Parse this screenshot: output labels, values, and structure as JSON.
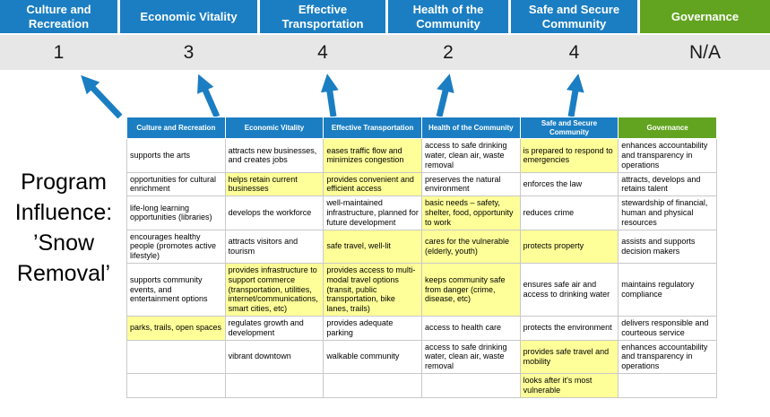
{
  "title": {
    "lines": [
      "Program",
      "Influence:",
      "’Snow",
      "Removal’"
    ]
  },
  "colors": {
    "blue": "#1b7ec2",
    "green": "#62a420",
    "score_bg": "#e7e7e7",
    "highlight": "#ffff99",
    "arrow": "#1b7ec2"
  },
  "scoreboard": [
    {
      "label": "Culture and Recreation",
      "score": "1",
      "theme": "blue"
    },
    {
      "label": "Economic Vitality",
      "score": "3",
      "theme": "blue"
    },
    {
      "label": "Effective Transportation",
      "score": "4",
      "theme": "blue"
    },
    {
      "label": "Health of the Community",
      "score": "2",
      "theme": "blue"
    },
    {
      "label": "Safe and Secure Community",
      "score": "4",
      "theme": "blue"
    },
    {
      "label": "Governance",
      "score": "N/A",
      "theme": "green"
    }
  ],
  "table": {
    "headers": [
      {
        "label": "Culture and Recreation",
        "theme": "blue"
      },
      {
        "label": "Economic Vitality",
        "theme": "blue"
      },
      {
        "label": "Effective Transportation",
        "theme": "blue"
      },
      {
        "label": "Health of the Community",
        "theme": "blue"
      },
      {
        "label": "Safe and Secure Community",
        "theme": "blue"
      },
      {
        "label": "Governance",
        "theme": "green"
      }
    ],
    "rows": [
      [
        {
          "text": "supports the arts",
          "highlight": false
        },
        {
          "text": "attracts new businesses, and creates jobs",
          "highlight": false
        },
        {
          "text": "eases traffic flow and minimizes congestion",
          "highlight": true
        },
        {
          "text": "access to safe drinking water, clean air, waste removal",
          "highlight": false
        },
        {
          "text": "is prepared to respond to emergencies",
          "highlight": true
        },
        {
          "text": "enhances accountability and transparency in operations",
          "highlight": false
        }
      ],
      [
        {
          "text": "opportunities for cultural enrichment",
          "highlight": false
        },
        {
          "text": "helps retain current businesses",
          "highlight": true
        },
        {
          "text": "provides convenient and efficient access",
          "highlight": true
        },
        {
          "text": "preserves the natural environment",
          "highlight": false
        },
        {
          "text": "enforces the law",
          "highlight": false
        },
        {
          "text": "attracts, develops and retains talent",
          "highlight": false
        }
      ],
      [
        {
          "text": "life-long learning opportunities (libraries)",
          "highlight": false
        },
        {
          "text": "develops the workforce",
          "highlight": false
        },
        {
          "text": "well-maintained infrastructure, planned for future development",
          "highlight": false
        },
        {
          "text": "basic needs – safety, shelter, food, opportunity to work",
          "highlight": true
        },
        {
          "text": "reduces crime",
          "highlight": false
        },
        {
          "text": "stewardship of financial, human and physical resources",
          "highlight": false
        }
      ],
      [
        {
          "text": "encourages healthy people (promotes active lifestyle)",
          "highlight": false
        },
        {
          "text": "attracts visitors and tourism",
          "highlight": false
        },
        {
          "text": "safe travel, well-lit",
          "highlight": true
        },
        {
          "text": "cares for the vulnerable (elderly, youth)",
          "highlight": true
        },
        {
          "text": "protects property",
          "highlight": true
        },
        {
          "text": "assists and supports decision makers",
          "highlight": false
        }
      ],
      [
        {
          "text": "supports community events, and entertainment options",
          "highlight": false
        },
        {
          "text": "provides infrastructure to support commerce (transportation, utilities, internet/communications, smart cities, etc)",
          "highlight": true
        },
        {
          "text": "provides access to multi-modal travel options (transit, public transportation, bike lanes, trails)",
          "highlight": true
        },
        {
          "text": "keeps community safe from danger (crime, disease, etc)",
          "highlight": true
        },
        {
          "text": "ensures safe air and access to drinking water",
          "highlight": false
        },
        {
          "text": "maintains regulatory compliance",
          "highlight": false
        }
      ],
      [
        {
          "text": "parks, trails, open spaces",
          "highlight": true
        },
        {
          "text": "regulates growth and development",
          "highlight": false
        },
        {
          "text": "provides adequate parking",
          "highlight": false
        },
        {
          "text": "access to health care",
          "highlight": false
        },
        {
          "text": "protects the environment",
          "highlight": false
        },
        {
          "text": "delivers responsible and courteous service",
          "highlight": false
        }
      ],
      [
        {
          "text": "",
          "highlight": false
        },
        {
          "text": "vibrant downtown",
          "highlight": false
        },
        {
          "text": "walkable community",
          "highlight": false
        },
        {
          "text": "access to safe drinking water, clean air, waste removal",
          "highlight": false
        },
        {
          "text": "provides safe travel and mobility",
          "highlight": true
        },
        {
          "text": "enhances accountability and transparency in operations",
          "highlight": false
        }
      ],
      [
        {
          "text": "",
          "highlight": false
        },
        {
          "text": "",
          "highlight": false
        },
        {
          "text": "",
          "highlight": false
        },
        {
          "text": "",
          "highlight": false
        },
        {
          "text": "looks after it's most vulnerable",
          "highlight": true
        },
        {
          "text": "",
          "highlight": false
        }
      ]
    ]
  }
}
